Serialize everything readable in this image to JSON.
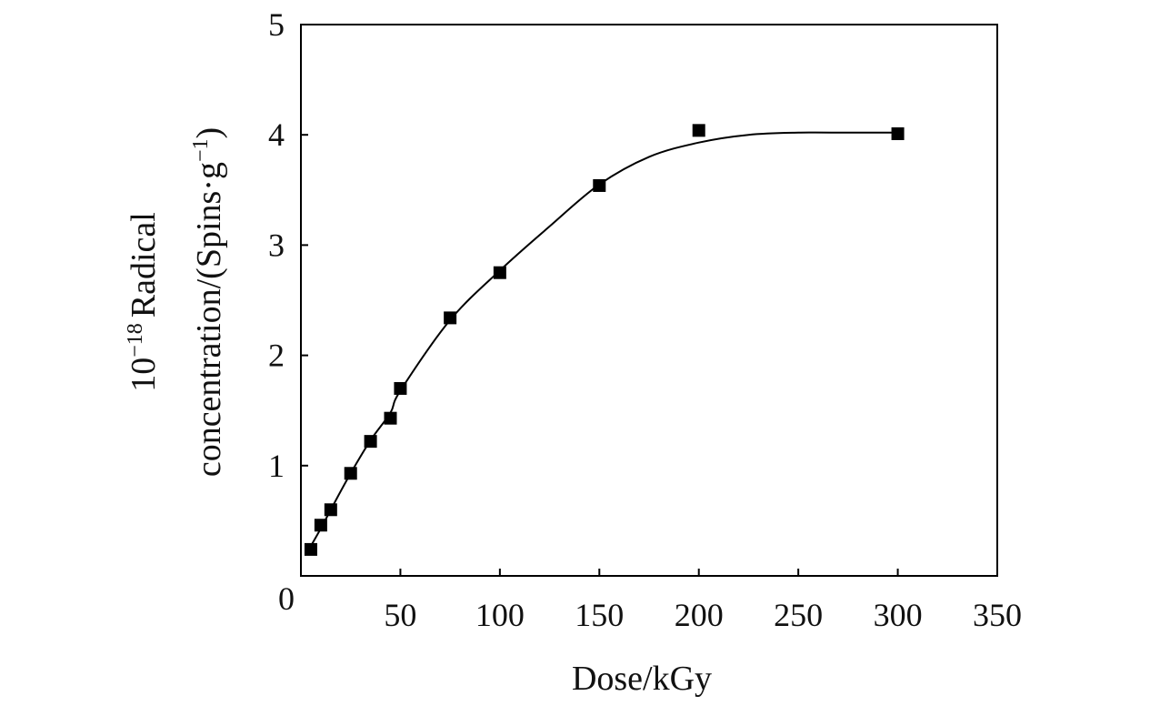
{
  "chart_data": {
    "type": "scatter",
    "xlabel": "Dose/kGy",
    "ylabel": {
      "line1_prefix": "10",
      "line1_exponent": "−18",
      "line1_text": "Radical",
      "line2_text": "concentration/(Spins·g",
      "line2_exponent": "−1",
      "line2_close": ")"
    },
    "xlim": [
      0,
      350
    ],
    "ylim": [
      0,
      5
    ],
    "x_ticks": [
      0,
      50,
      100,
      150,
      200,
      250,
      300,
      350
    ],
    "y_ticks": [
      1,
      2,
      3,
      4,
      5
    ],
    "x_tick_labels": [
      "0",
      "50",
      "100",
      "150",
      "200",
      "250",
      "300",
      "350"
    ],
    "y_tick_labels": [
      "1",
      "2",
      "3",
      "4",
      "5"
    ],
    "grid": false,
    "series": [
      {
        "marker": "square",
        "color": "#000000",
        "x": [
          5,
          10,
          15,
          25,
          35,
          45,
          50,
          75,
          100,
          150,
          200,
          300
        ],
        "y": [
          0.24,
          0.46,
          0.6,
          0.93,
          1.22,
          1.43,
          1.7,
          2.34,
          2.75,
          3.54,
          4.04,
          4.01
        ]
      }
    ],
    "fit_curve": {
      "color": "#000000",
      "x": [
        5,
        10,
        15,
        25,
        35,
        45,
        50,
        75,
        100,
        125,
        150,
        175,
        200,
        225,
        250,
        275,
        300
      ],
      "y": [
        0.27,
        0.43,
        0.6,
        0.93,
        1.23,
        1.48,
        1.68,
        2.32,
        2.77,
        3.17,
        3.55,
        3.8,
        3.93,
        4.0,
        4.02,
        4.02,
        4.02
      ]
    }
  }
}
